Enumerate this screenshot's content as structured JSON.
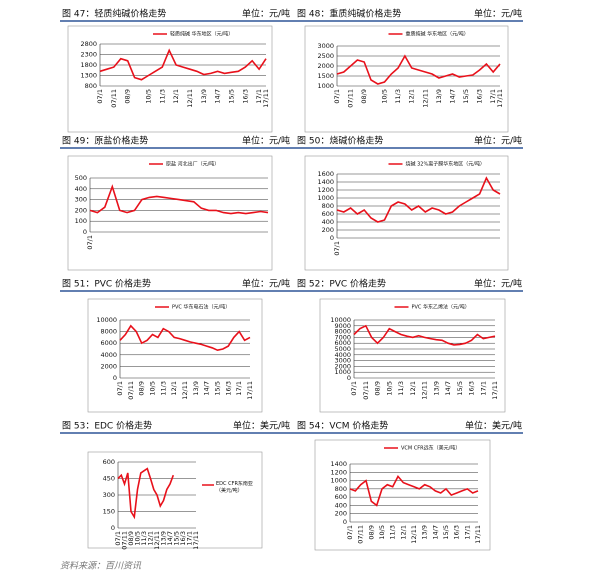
{
  "chart_data": [
    {
      "type": "line",
      "title": "图 47：轻质纯碱价格走势",
      "unit": "单位：元/吨",
      "legend": "top",
      "categories": [
        "07/1",
        null,
        "07/11",
        null,
        "08/9",
        null,
        null,
        "10/5",
        null,
        "11/3",
        null,
        "12/1",
        null,
        "12/11",
        null,
        "13/9",
        null,
        "14/7",
        null,
        "15/5",
        null,
        "16/3",
        null,
        "17/1",
        "17/11"
      ],
      "series": [
        {
          "name": "轻质纯碱 华东地区（元/吨）",
          "color": "#e8111b",
          "values": [
            1500,
            1600,
            1700,
            2100,
            2000,
            1200,
            1100,
            1300,
            1500,
            1700,
            2500,
            1800,
            1700,
            1600,
            1500,
            1350,
            1400,
            1500,
            1400,
            1450,
            1500,
            1700,
            2000,
            1600,
            2100
          ]
        }
      ],
      "ylim": [
        800,
        2800
      ],
      "yticks": [
        800,
        1300,
        1800,
        2300,
        2800
      ]
    },
    {
      "type": "line",
      "title": "图 48：重质纯碱价格走势",
      "unit": "单位：元/吨",
      "legend": "top",
      "categories": [
        "07/1",
        null,
        "07/11",
        null,
        "08/9",
        null,
        null,
        "10/5",
        null,
        "11/3",
        null,
        "12/1",
        null,
        "12/11",
        null,
        "13/9",
        null,
        "14/7",
        null,
        "15/5",
        null,
        "16/3",
        null,
        "17/1",
        "17/11"
      ],
      "series": [
        {
          "name": "重质纯碱 华东地区（元/吨）",
          "color": "#e8111b",
          "values": [
            1600,
            1700,
            2000,
            2300,
            2200,
            1300,
            1100,
            1200,
            1600,
            1900,
            2500,
            1900,
            1800,
            1700,
            1600,
            1400,
            1500,
            1600,
            1450,
            1500,
            1550,
            1800,
            2100,
            1700,
            2100
          ]
        }
      ],
      "ylim": [
        1000,
        3000
      ],
      "yticks": [
        1000,
        1500,
        2000,
        2500,
        3000
      ]
    },
    {
      "type": "line",
      "title": "图 49：原盐价格走势",
      "unit": "单位：元/吨",
      "legend": "top",
      "categories": [
        "07/1",
        null,
        null,
        null,
        null,
        null,
        null,
        null,
        null,
        null,
        null,
        null,
        null,
        null,
        null,
        null,
        null,
        null,
        null,
        null,
        null,
        null,
        null,
        null,
        null
      ],
      "series": [
        {
          "name": "原盐 河北出厂（元/吨）",
          "color": "#e8111b",
          "values": [
            200,
            180,
            230,
            420,
            200,
            180,
            200,
            300,
            320,
            330,
            320,
            310,
            300,
            290,
            280,
            220,
            200,
            200,
            180,
            170,
            180,
            170,
            180,
            190,
            180
          ]
        }
      ],
      "ylim": [
        0,
        500
      ],
      "yticks": [
        0,
        100,
        200,
        300,
        400,
        500
      ]
    },
    {
      "type": "line",
      "title": "图 50：烧碱价格走势",
      "unit": "单位：元/吨",
      "legend": "top",
      "categories": [
        "07/1",
        null,
        null,
        null,
        null,
        null,
        null,
        null,
        null,
        null,
        null,
        null,
        null,
        null,
        null,
        null,
        null,
        null,
        null,
        null,
        null,
        null,
        null,
        null,
        null
      ],
      "series": [
        {
          "name": "烧碱 32%离子膜华东地区（元/吨）",
          "color": "#e8111b",
          "values": [
            700,
            650,
            750,
            600,
            700,
            500,
            400,
            450,
            800,
            900,
            850,
            700,
            800,
            650,
            750,
            700,
            600,
            650,
            800,
            900,
            1000,
            1100,
            1500,
            1200,
            1100
          ]
        }
      ],
      "ylim": [
        0,
        1600
      ],
      "yticks": [
        0,
        200,
        400,
        600,
        800,
        1000,
        1200,
        1400,
        1600
      ]
    },
    {
      "type": "line",
      "title": "图 51：PVC 价格走势",
      "unit": "单位：元/吨",
      "legend": "top",
      "categories": [
        "07/1",
        null,
        "07/11",
        null,
        "08/9",
        null,
        "10/5",
        null,
        "11/3",
        null,
        "12/1",
        null,
        "12/11",
        null,
        "13/9",
        null,
        "14/7",
        null,
        "15/5",
        null,
        "16/3",
        null,
        "17/1",
        null,
        "17/11"
      ],
      "series": [
        {
          "name": "PVC 华东电石法（元/吨）",
          "color": "#e8111b",
          "values": [
            6500,
            7500,
            9000,
            8000,
            6000,
            6500,
            7500,
            7000,
            8500,
            8000,
            7000,
            6800,
            6500,
            6200,
            6000,
            5800,
            5500,
            5200,
            4800,
            5000,
            5500,
            7000,
            8000,
            6500,
            7000
          ]
        }
      ],
      "ylim": [
        0,
        10000
      ],
      "yticks": [
        0,
        2000,
        4000,
        6000,
        8000,
        10000
      ]
    },
    {
      "type": "line",
      "title": "图 52：PVC 价格走势",
      "unit": "单位：元/吨",
      "legend": "top",
      "categories": [
        "07/1",
        null,
        "07/11",
        null,
        "08/9",
        null,
        "10/5",
        null,
        "11/3",
        null,
        "12/1",
        null,
        "12/11",
        null,
        "13/9",
        null,
        "14/7",
        null,
        "15/5",
        null,
        "16/3",
        null,
        "17/1",
        null,
        "17/11"
      ],
      "series": [
        {
          "name": "PVC 华东乙烯法（元/吨）",
          "color": "#e8111b",
          "values": [
            7500,
            8500,
            9000,
            7000,
            6000,
            7000,
            8500,
            8000,
            7500,
            7200,
            7000,
            7300,
            7000,
            6800,
            6600,
            6500,
            6000,
            5700,
            5800,
            6000,
            6500,
            7500,
            6800,
            7000,
            7200
          ]
        }
      ],
      "ylim": [
        0,
        10000
      ],
      "yticks": [
        0,
        1000,
        2000,
        3000,
        4000,
        5000,
        6000,
        7000,
        8000,
        9000,
        10000
      ]
    },
    {
      "type": "line",
      "title": "图 53：EDC 价格走势",
      "unit": "单位：美元/吨",
      "legend": "right",
      "categories": [
        "07/1",
        null,
        "07/11",
        null,
        "08/9",
        null,
        "10/5",
        null,
        "11/3",
        null,
        "12/1",
        null,
        "12/11",
        null,
        "13/9",
        null,
        "14/7",
        null,
        "15/5",
        null,
        "16/3",
        null,
        "17/1",
        null,
        "17/11"
      ],
      "series": [
        {
          "name": "EDC CFR东南亚（美元/吨）",
          "color": "#e8111b",
          "values": [
            450,
            480,
            400,
            500,
            150,
            100,
            350,
            500,
            520,
            540,
            450,
            350,
            300,
            200,
            250,
            350,
            400,
            480,
            null,
            null,
            null,
            null,
            null,
            null,
            null
          ]
        }
      ],
      "ylim": [
        0,
        600
      ],
      "yticks": [
        0,
        150,
        300,
        450,
        600
      ]
    },
    {
      "type": "line",
      "title": "图 54：VCM 价格走势",
      "unit": "单位：美元/吨",
      "legend": "top",
      "categories": [
        "07/1",
        null,
        "07/11",
        null,
        "08/9",
        null,
        "10/5",
        null,
        "11/3",
        null,
        "12/1",
        null,
        "12/11",
        null,
        "13/9",
        null,
        "14/7",
        null,
        "15/5",
        null,
        "16/3",
        null,
        "17/1",
        null,
        "17/11"
      ],
      "series": [
        {
          "name": "VCM CFR远东（美元/吨）",
          "color": "#e8111b",
          "values": [
            800,
            750,
            900,
            1000,
            500,
            400,
            800,
            900,
            850,
            1100,
            950,
            900,
            850,
            800,
            900,
            850,
            750,
            700,
            800,
            650,
            700,
            750,
            800,
            700,
            750
          ]
        }
      ],
      "ylim": [
        0,
        1400
      ],
      "yticks": [
        0,
        200,
        400,
        600,
        800,
        1000,
        1200,
        1400
      ]
    }
  ],
  "source": "资料来源：百川资讯"
}
